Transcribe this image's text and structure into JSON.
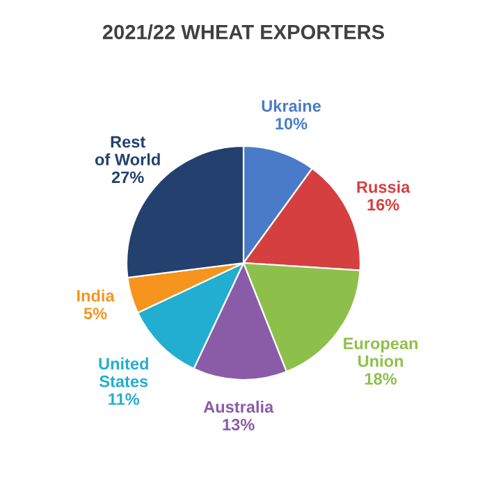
{
  "chart_data": {
    "type": "pie",
    "title": "2021/22 WHEAT EXPORTERS",
    "categories": [
      "Ukraine",
      "Russia",
      "European Union",
      "Australia",
      "United States",
      "India",
      "Rest of World"
    ],
    "values": [
      10,
      16,
      18,
      13,
      11,
      5,
      27
    ],
    "value_labels": [
      "10%",
      "16%",
      "18%",
      "13%",
      "11%",
      "5%",
      "27%"
    ],
    "colors": [
      "#4a7bc8",
      "#d63f3f",
      "#8dc04a",
      "#8a5ca8",
      "#22aed0",
      "#f7941d",
      "#23406f"
    ],
    "legend": false
  }
}
